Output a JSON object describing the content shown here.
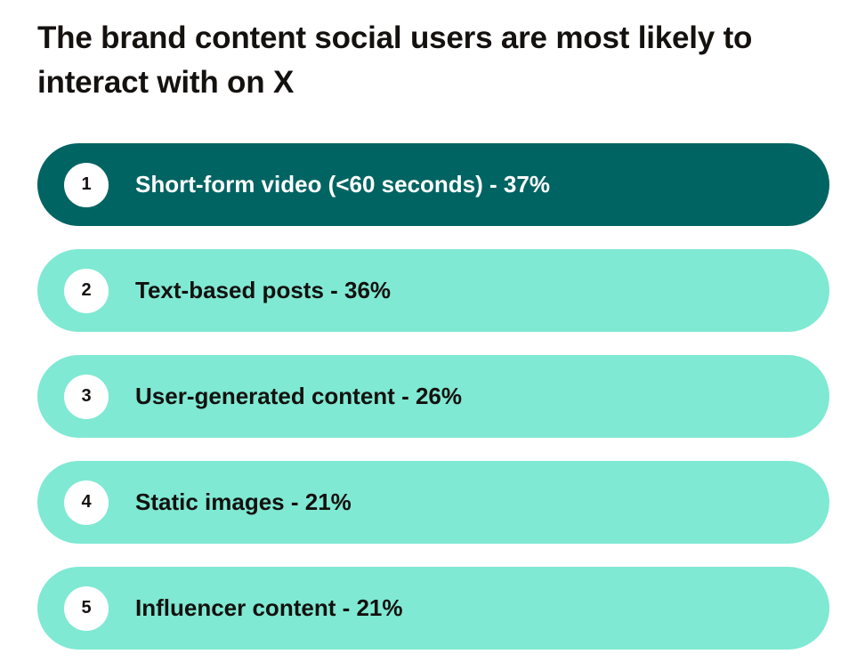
{
  "title": "The brand content social users are most likely to interact with on X",
  "colors": {
    "highlight_bg": "#006462",
    "item_bg": "#7fe9d3",
    "badge_bg": "#ffffff",
    "text_dark": "#14110f",
    "text_light": "#ffffff"
  },
  "items": [
    {
      "rank": "1",
      "label": "Short-form video (<60 seconds) - 37%"
    },
    {
      "rank": "2",
      "label": "Text-based posts - 36%"
    },
    {
      "rank": "3",
      "label": "User-generated content - 26%"
    },
    {
      "rank": "4",
      "label": "Static images - 21%"
    },
    {
      "rank": "5",
      "label": "Influencer content - 21%"
    }
  ]
}
